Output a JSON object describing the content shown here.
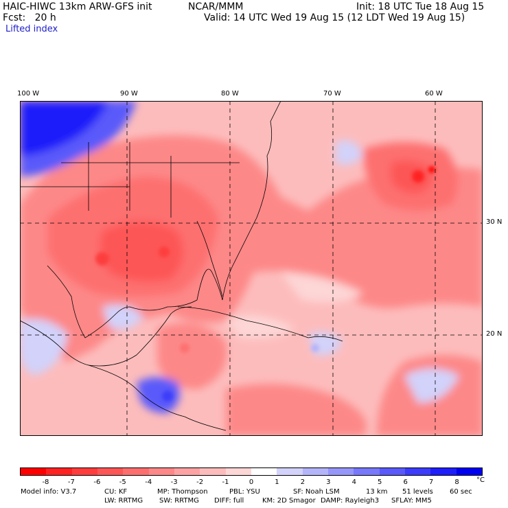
{
  "header": {
    "model": "HAIC-HIWC 13km ARW-GFS init",
    "org": "NCAR/MMM",
    "init": "Init: 18 UTC Tue 18 Aug 15",
    "fcst": "Fcst:   20 h",
    "valid": "Valid: 14 UTC Wed 19 Aug 15 (12 LDT Wed 19 Aug 15)",
    "field": "Lifted index"
  },
  "map": {
    "lon_labels": [
      "100 W",
      "90 W",
      "80 W",
      "70 W",
      "60 W"
    ],
    "lat_labels": [
      "30 N",
      "20 N"
    ]
  },
  "colorbar": {
    "unit": "°C",
    "ticks": [
      "-8",
      "-7",
      "-6",
      "-5",
      "-4",
      "-3",
      "-2",
      "-1",
      "0",
      "1",
      "2",
      "3",
      "4",
      "5",
      "6",
      "7",
      "8"
    ],
    "colors": [
      "#ff0000",
      "#ff2222",
      "#ff3d3d",
      "#fd5656",
      "#fd6f6f",
      "#fd8888",
      "#fda3a3",
      "#fdbcbc",
      "#fdd6d6",
      "#ffffff",
      "#d2d2fa",
      "#b4b4fa",
      "#9696fa",
      "#7878fa",
      "#5a5afa",
      "#3c3cfa",
      "#1e1efa",
      "#0000f0"
    ]
  },
  "footer": {
    "line1": [
      "Model info: V3.7",
      "CU: KF",
      "MP: Thompson",
      "PBL: YSU",
      "SF: Noah LSM",
      "13 km",
      "51 levels",
      "60 sec"
    ],
    "line2": [
      "LW: RRTMG",
      "SW: RRTMG",
      "DIFF: full",
      "KM: 2D Smagor",
      "DAMP: Rayleigh3",
      "SFLAY: MM5"
    ]
  }
}
